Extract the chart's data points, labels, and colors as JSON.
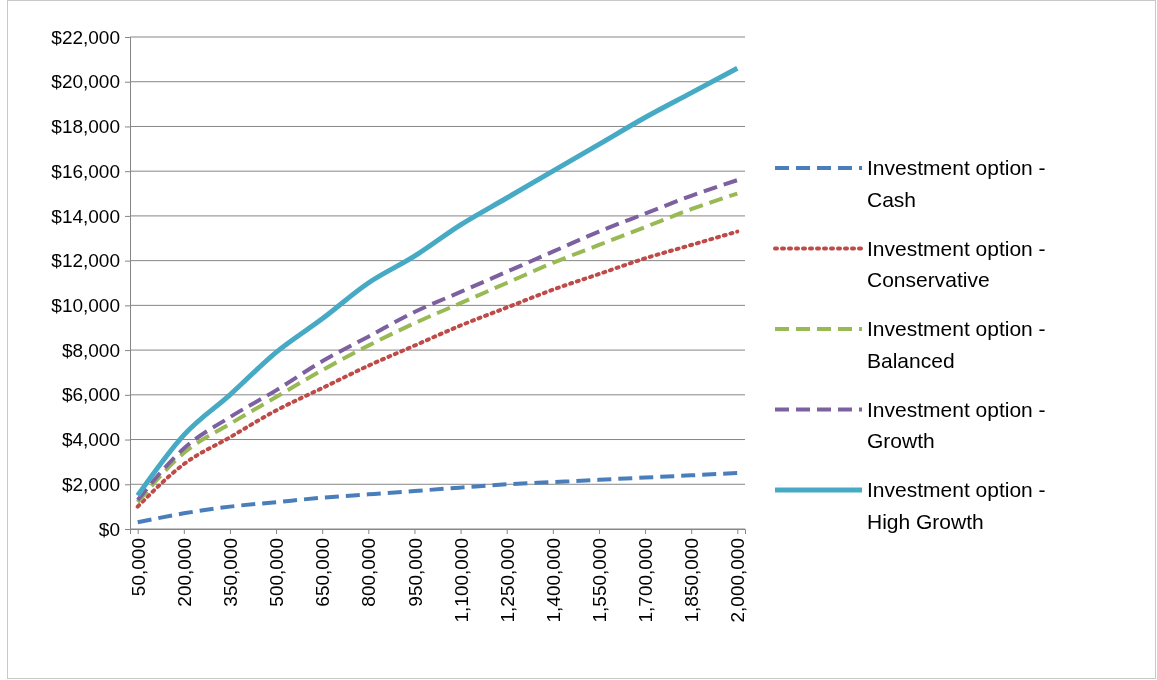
{
  "chart_data": {
    "type": "line",
    "x": [
      50000,
      200000,
      350000,
      500000,
      650000,
      800000,
      950000,
      1100000,
      1250000,
      1400000,
      1550000,
      1700000,
      1850000,
      2000000
    ],
    "series": [
      {
        "name": "Investment option - Cash",
        "color": "#4a7ebb",
        "line_style": "dashed",
        "values": [
          300,
          700,
          1000,
          1200,
          1400,
          1550,
          1700,
          1850,
          2000,
          2100,
          2200,
          2300,
          2400,
          2500
        ]
      },
      {
        "name": "Investment option - Conservative",
        "color": "#be4b48",
        "line_style": "dotted",
        "values": [
          1000,
          2900,
          4100,
          5300,
          6300,
          7300,
          8200,
          9100,
          9900,
          10700,
          11400,
          12100,
          12700,
          13300
        ]
      },
      {
        "name": "Investment option - Balanced",
        "color": "#98b954",
        "line_style": "dashed",
        "values": [
          1200,
          3400,
          4700,
          5900,
          7100,
          8200,
          9200,
          10100,
          11000,
          11900,
          12700,
          13500,
          14300,
          15000
        ]
      },
      {
        "name": "Investment option - Growth",
        "color": "#7d60a0",
        "line_style": "dashed",
        "values": [
          1300,
          3600,
          5000,
          6200,
          7500,
          8600,
          9700,
          10600,
          11500,
          12400,
          13300,
          14100,
          14900,
          15600
        ]
      },
      {
        "name": "Investment option - High Growth",
        "color": "#46aac5",
        "line_style": "solid",
        "values": [
          1500,
          4200,
          6000,
          7900,
          9400,
          11000,
          12200,
          13600,
          14800,
          16000,
          17200,
          18400,
          19500,
          20600
        ]
      }
    ],
    "xlim": [
      25000,
      2025000
    ],
    "xticks": [
      {
        "value": 50000,
        "label": "50,000"
      },
      {
        "value": 200000,
        "label": "200,000"
      },
      {
        "value": 350000,
        "label": "350,000"
      },
      {
        "value": 500000,
        "label": "500,000"
      },
      {
        "value": 650000,
        "label": "650,000"
      },
      {
        "value": 800000,
        "label": "800,000"
      },
      {
        "value": 950000,
        "label": "950,000"
      },
      {
        "value": 1100000,
        "label": "1,100,000"
      },
      {
        "value": 1250000,
        "label": "1,250,000"
      },
      {
        "value": 1400000,
        "label": "1,400,000"
      },
      {
        "value": 1550000,
        "label": "1,550,000"
      },
      {
        "value": 1700000,
        "label": "1,700,000"
      },
      {
        "value": 1850000,
        "label": "1,850,000"
      },
      {
        "value": 2000000,
        "label": "2,000,000"
      }
    ],
    "ylim": [
      0,
      22000
    ],
    "yticks": [
      {
        "value": 0,
        "label": "$0"
      },
      {
        "value": 2000,
        "label": "$2,000"
      },
      {
        "value": 4000,
        "label": "$4,000"
      },
      {
        "value": 6000,
        "label": "$6,000"
      },
      {
        "value": 8000,
        "label": "$8,000"
      },
      {
        "value": 10000,
        "label": "$10,000"
      },
      {
        "value": 12000,
        "label": "$12,000"
      },
      {
        "value": 14000,
        "label": "$14,000"
      },
      {
        "value": 16000,
        "label": "$16,000"
      },
      {
        "value": 18000,
        "label": "$18,000"
      },
      {
        "value": 20000,
        "label": "$20,000"
      },
      {
        "value": 22000,
        "label": "$22,000"
      }
    ],
    "grid": "y",
    "legend": "right",
    "marker": "none"
  }
}
